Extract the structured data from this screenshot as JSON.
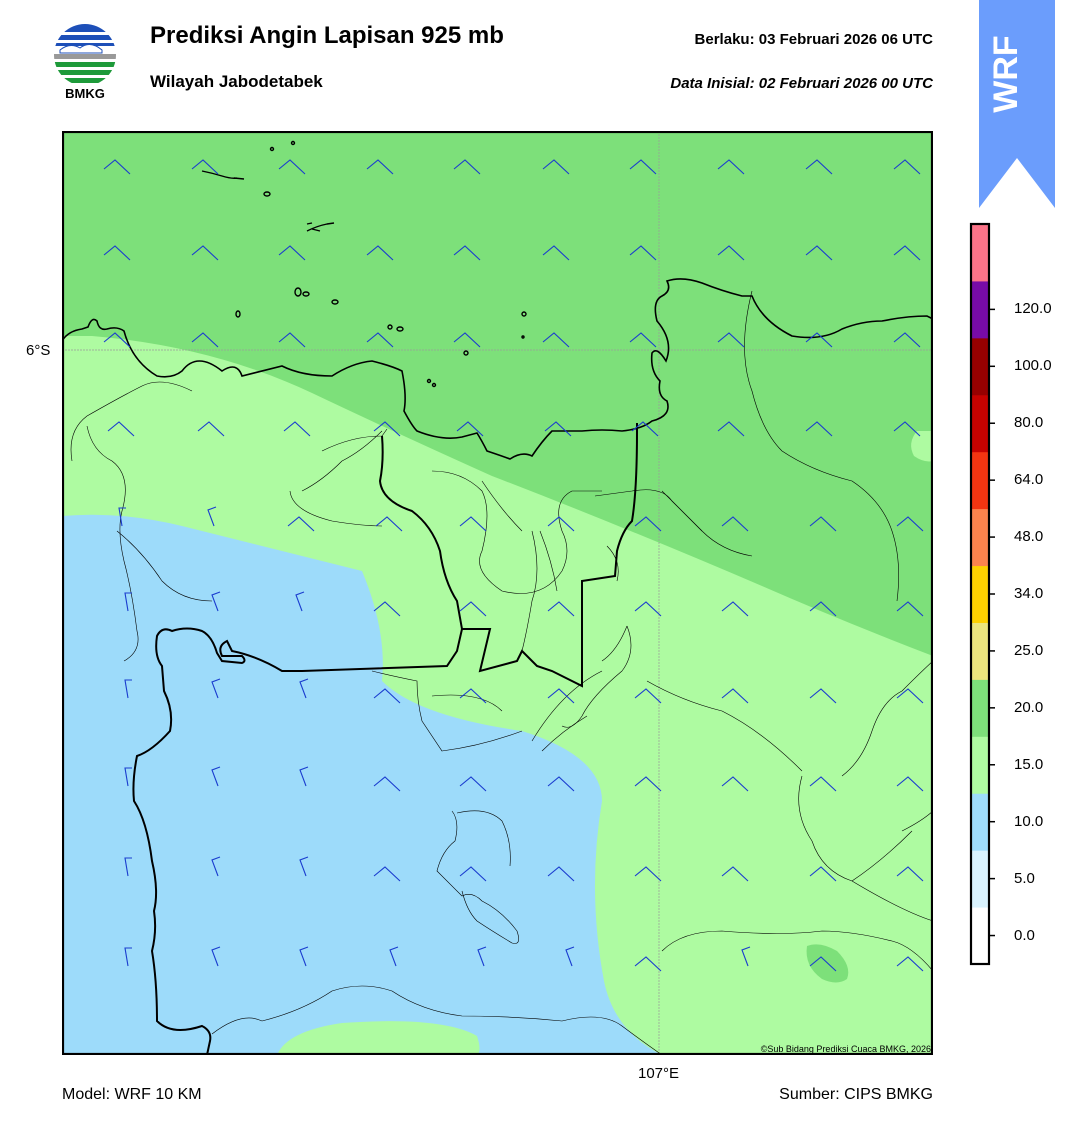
{
  "header": {
    "logo_label": "BMKG",
    "title": "Prediksi Angin Lapisan 925 mb",
    "subtitle": "Wilayah Jabodetabek",
    "valid_time": "Berlaku:  03 Februari 2026 06 UTC",
    "init_time": "Data Inisial:  02 Februari 2026 00 UTC",
    "badge": "WRF"
  },
  "map": {
    "lat_label": "6°S",
    "lon_label": "107°E",
    "copyright": "©Sub Bidang Prediksi Cuaca BMKG, 2026",
    "colors": {
      "zone_15_20": "#7de07a",
      "zone_10_15": "#aefba1",
      "zone_5_10": "#9ddbfa",
      "barb": "#1a3ccf",
      "coast": "#000000"
    }
  },
  "colorbar": {
    "ticks": [
      "0.0",
      "5.0",
      "10.0",
      "15.0",
      "20.0",
      "25.0",
      "34.0",
      "48.0",
      "64.0",
      "80.0",
      "100.0",
      "120.0"
    ],
    "colors": [
      "#ffffff",
      "#d9f2fd",
      "#9ddbfa",
      "#aefba1",
      "#7de07a",
      "#ece57d",
      "#fdd000",
      "#fb834d",
      "#f23511",
      "#c60200",
      "#960000",
      "#770ba7",
      "#fb7489"
    ]
  },
  "footer": {
    "model": "Model: WRF 10 KM",
    "source": "Sumber: CIPS BMKG"
  }
}
